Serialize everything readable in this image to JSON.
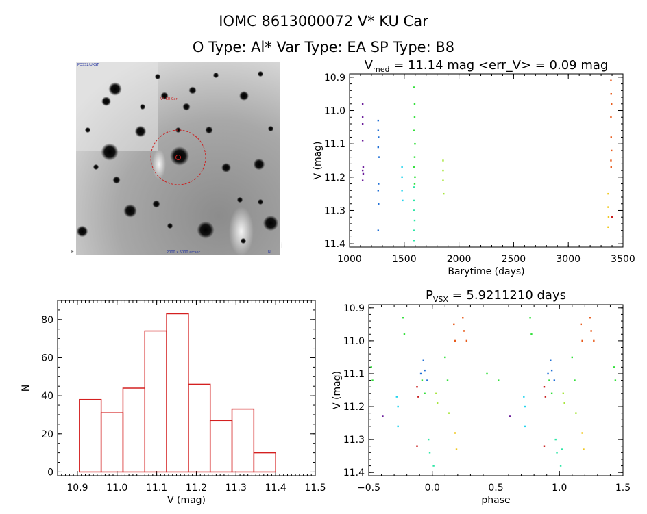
{
  "header": {
    "title_line1": "IOMC 8613000072    V* KU Car",
    "title_line2": "O Type: Al*  Var Type: EA   SP Type: B8"
  },
  "finder": {
    "label_topleft": "POSS2/UKST",
    "label_target": "V* KU Car",
    "label_bottom": "2000 x 5000 arcsec",
    "label_corner": "E",
    "label_bottomright": "N",
    "label_right": "i"
  },
  "colors": {
    "hist": "#d42020",
    "violet": "#6a1b9a",
    "blue": "#1f6fd6",
    "cyan": "#22d3ee",
    "teal": "#2ee6a6",
    "green": "#32e03a",
    "lime": "#a6e63a",
    "yellow": "#f0c81e",
    "orange": "#e85a1a",
    "red": "#c81a1a"
  },
  "chart_data": [
    {
      "id": "lightcurve",
      "type": "scatter",
      "title_main": "V",
      "title_sub": "med",
      "title_rest": " = 11.14 mag <err_V> = 0.09 mag",
      "xlabel": "Barytime (days)",
      "ylabel": "V (mag)",
      "xlim": [
        1000,
        3500
      ],
      "ylim": [
        10.89,
        11.41
      ],
      "y_inverted": true,
      "xticks": [
        "1000",
        "1500",
        "2000",
        "2500",
        "3000",
        "3500"
      ],
      "yticks": [
        "10.9",
        "11.0",
        "11.1",
        "11.2",
        "11.3",
        "11.4"
      ],
      "series": [
        {
          "color": "violet",
          "x": [
            1120,
            1120,
            1120,
            1120,
            1125,
            1125,
            1120,
            1120
          ],
          "y": [
            10.98,
            11.02,
            11.04,
            11.09,
            11.17,
            11.19,
            11.21,
            11.18
          ]
        },
        {
          "color": "blue",
          "x": [
            1262,
            1262,
            1265,
            1262,
            1268,
            1265,
            1262,
            1265,
            1262
          ],
          "y": [
            11.03,
            11.06,
            11.08,
            11.11,
            11.14,
            11.22,
            11.24,
            11.28,
            11.36
          ]
        },
        {
          "color": "cyan",
          "x": [
            1480,
            1480,
            1480,
            1485
          ],
          "y": [
            11.17,
            11.2,
            11.24,
            11.27
          ]
        },
        {
          "color": "teal",
          "x": [
            1590,
            1590,
            1590,
            1595,
            1590,
            1590
          ],
          "y": [
            11.23,
            11.27,
            11.3,
            11.33,
            11.36,
            11.39
          ]
        },
        {
          "color": "green",
          "x": [
            1590,
            1595,
            1595,
            1590,
            1598,
            1595,
            1590,
            1598,
            1595
          ],
          "y": [
            10.93,
            10.98,
            11.02,
            11.06,
            11.1,
            11.14,
            11.17,
            11.2,
            11.22
          ]
        },
        {
          "color": "lime",
          "x": [
            1855,
            1855,
            1855,
            1860
          ],
          "y": [
            11.15,
            11.18,
            11.21,
            11.25
          ]
        },
        {
          "color": "yellow",
          "x": [
            3365,
            3365,
            3368,
            3365
          ],
          "y": [
            11.25,
            11.29,
            11.32,
            11.35
          ]
        },
        {
          "color": "orange",
          "x": [
            3390,
            3392,
            3395,
            3390,
            3392,
            3395,
            3390,
            3392
          ],
          "y": [
            10.91,
            10.95,
            10.98,
            11.02,
            11.08,
            11.12,
            11.15,
            11.17
          ]
        },
        {
          "color": "red",
          "x": [
            3400
          ],
          "y": [
            11.32
          ]
        }
      ]
    },
    {
      "id": "histogram",
      "type": "bar",
      "xlabel": "V (mag)",
      "ylabel": "N",
      "xlim": [
        10.85,
        11.5
      ],
      "ylim": [
        -2,
        90
      ],
      "xticks": [
        "10.9",
        "11.0",
        "11.1",
        "11.2",
        "11.3",
        "11.4",
        "11.5"
      ],
      "yticks": [
        "0",
        "20",
        "40",
        "60",
        "80"
      ],
      "bin_edges": [
        10.905,
        10.96,
        11.015,
        11.07,
        11.125,
        11.18,
        11.235,
        11.29,
        11.345,
        11.4
      ],
      "values": [
        38,
        31,
        44,
        74,
        83,
        46,
        27,
        33,
        10
      ]
    },
    {
      "id": "phased",
      "type": "scatter",
      "title_main": "P",
      "title_sub": "VSX",
      "title_rest": " = 5.9211210 days",
      "xlabel": "phase",
      "ylabel": "V (mag)",
      "xlim": [
        -0.5,
        1.5
      ],
      "ylim": [
        10.89,
        11.41
      ],
      "y_inverted": true,
      "xticks": [
        "−0.5",
        "0.0",
        "0.5",
        "1.0",
        "1.5"
      ],
      "yticks": [
        "10.9",
        "11.0",
        "11.1",
        "11.2",
        "11.3",
        "11.4"
      ],
      "series": [
        {
          "color": "green",
          "x": [
            -0.48,
            -0.47,
            -0.23,
            -0.22,
            -0.08,
            -0.06,
            0.1,
            0.12,
            0.43,
            0.52,
            0.77,
            0.78,
            0.92,
            0.94,
            1.1,
            1.12,
            1.43,
            1.44
          ],
          "y": [
            11.08,
            11.12,
            10.93,
            10.98,
            11.12,
            11.16,
            11.05,
            11.12,
            11.1,
            11.12,
            10.93,
            10.98,
            11.12,
            11.16,
            11.05,
            11.12,
            11.08,
            11.12
          ]
        },
        {
          "color": "orange",
          "x": [
            0.17,
            0.18,
            0.24,
            0.25,
            0.27,
            1.17,
            1.18,
            1.24,
            1.25,
            1.27
          ],
          "y": [
            10.95,
            11.0,
            10.93,
            10.97,
            11.0,
            10.95,
            11.0,
            10.93,
            10.97,
            11.0
          ]
        },
        {
          "color": "red",
          "x": [
            -0.12,
            -0.11,
            -0.12,
            0.88,
            0.89,
            0.88
          ],
          "y": [
            11.14,
            11.17,
            11.32,
            11.14,
            11.17,
            11.32
          ]
        },
        {
          "color": "blue",
          "x": [
            -0.07,
            -0.06,
            -0.04,
            0.93,
            0.94,
            0.96,
            0.91,
            -0.09
          ],
          "y": [
            11.06,
            11.09,
            11.12,
            11.06,
            11.09,
            11.12,
            11.1,
            11.1
          ]
        },
        {
          "color": "cyan",
          "x": [
            -0.28,
            -0.27,
            -0.27,
            0.72,
            0.73,
            0.73
          ],
          "y": [
            11.17,
            11.2,
            11.26,
            11.17,
            11.2,
            11.26
          ]
        },
        {
          "color": "teal",
          "x": [
            -0.03,
            -0.02,
            0.01,
            0.97,
            0.98,
            1.01,
            1.02
          ],
          "y": [
            11.3,
            11.34,
            11.38,
            11.3,
            11.34,
            11.38,
            11.33
          ]
        },
        {
          "color": "lime",
          "x": [
            0.03,
            0.04,
            0.13,
            1.03,
            1.04,
            1.13
          ],
          "y": [
            11.16,
            11.19,
            11.22,
            11.16,
            11.19,
            11.22
          ]
        },
        {
          "color": "yellow",
          "x": [
            0.18,
            0.19,
            1.18,
            1.19
          ],
          "y": [
            11.28,
            11.33,
            11.28,
            11.33
          ]
        },
        {
          "color": "violet",
          "x": [
            -0.39,
            0.61
          ],
          "y": [
            11.23,
            11.23
          ]
        }
      ]
    }
  ]
}
